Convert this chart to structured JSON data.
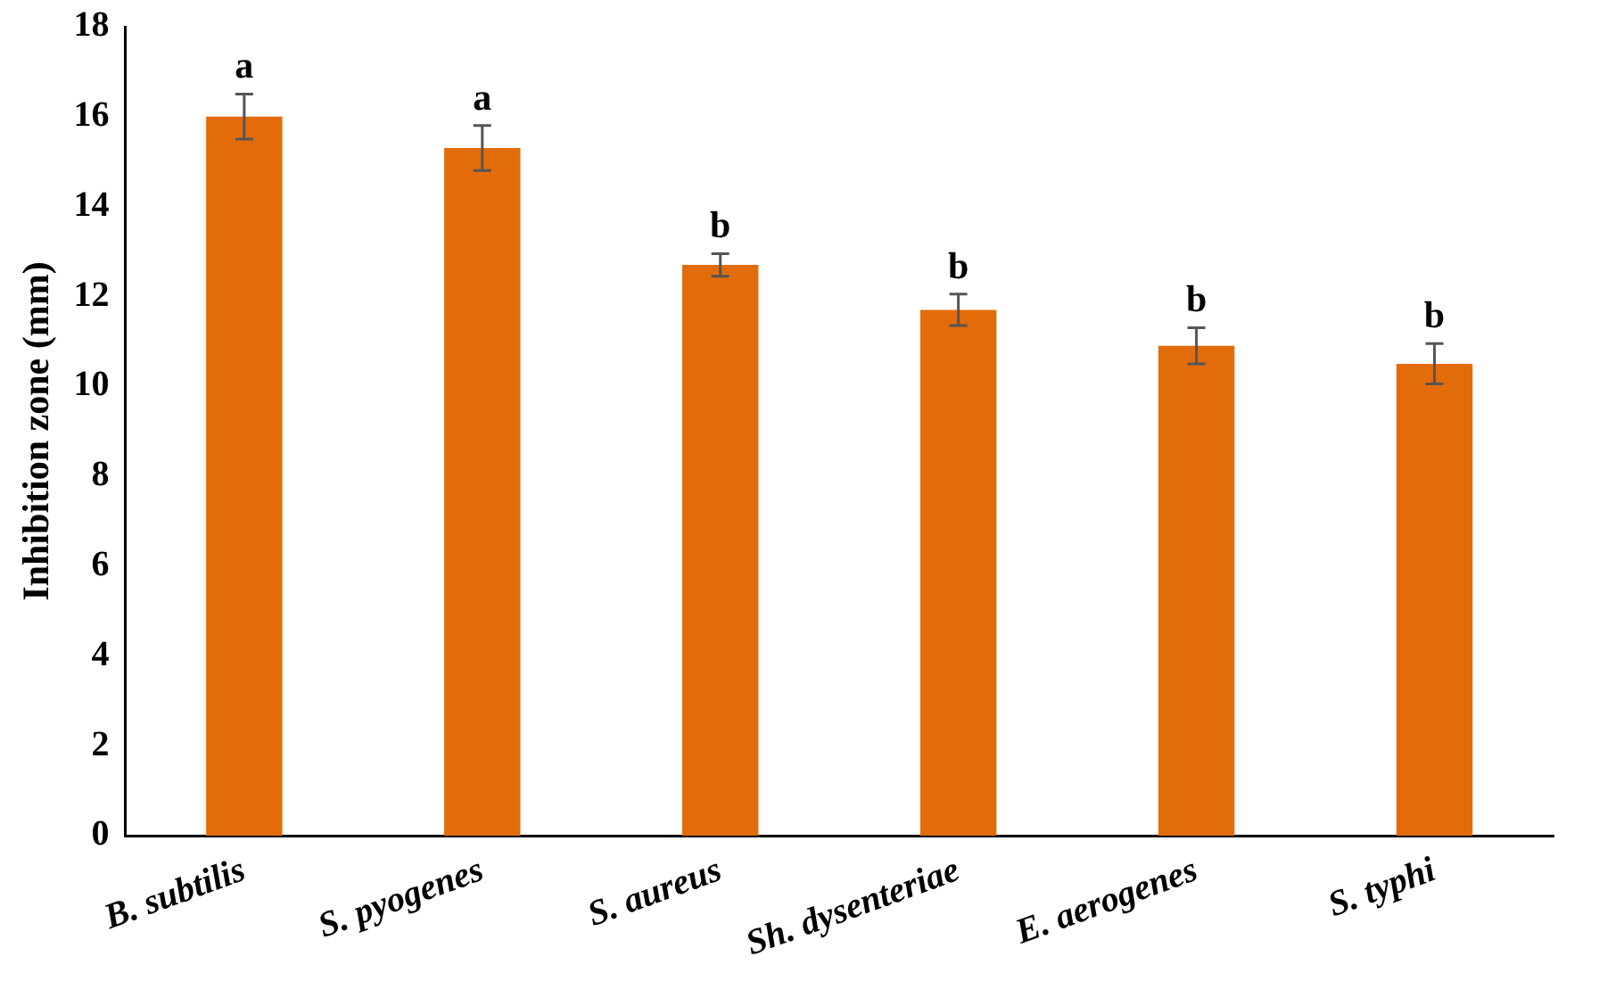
{
  "chart_data": {
    "type": "bar",
    "ylabel": "Inhibition zone (mm)",
    "categories": [
      "B. subtilis",
      "S. pyogenes",
      "S. aureus",
      "Sh. dysenteriae",
      "E. aerogenes",
      "S. typhi"
    ],
    "values": [
      16.0,
      15.3,
      12.7,
      11.7,
      10.9,
      10.5
    ],
    "errors": [
      0.5,
      0.5,
      0.25,
      0.35,
      0.4,
      0.45
    ],
    "color": "#e36c0a",
    "ylim": [
      0,
      18
    ],
    "yticks": [
      0,
      2,
      4,
      6,
      8,
      10,
      12,
      14,
      16,
      18
    ],
    "grid": false,
    "annotations": [
      {
        "text": "a",
        "x": "B. subtilis",
        "y": 16.5
      },
      {
        "text": "a",
        "x": "S. pyogenes",
        "y": 15.8
      },
      {
        "text": "b",
        "x": "S. aureus",
        "y": 12.95
      },
      {
        "text": "b",
        "x": "Sh. dysenteriae",
        "y": 12.05
      },
      {
        "text": "b",
        "x": "E. aerogenes",
        "y": 11.3
      },
      {
        "text": "b",
        "x": "S. typhi",
        "y": 10.95
      }
    ]
  }
}
